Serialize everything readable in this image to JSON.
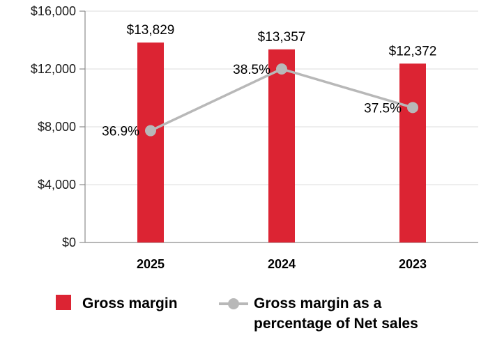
{
  "chart_data": {
    "type": "bar",
    "categories": [
      "2025",
      "2024",
      "2023"
    ],
    "series": [
      {
        "name": "Gross margin",
        "kind": "bar",
        "axis": "left",
        "values": [
          13829,
          13357,
          12372
        ],
        "labels": [
          "$13,829",
          "$13,357",
          "$12,372"
        ],
        "color": "#dc2433"
      },
      {
        "name": "Gross margin as a percentage of Net sales",
        "kind": "line",
        "axis": "right",
        "values": [
          36.9,
          38.5,
          37.5
        ],
        "labels": [
          "36.9%",
          "38.5%",
          "37.5%"
        ],
        "color": "#b8b8b8"
      }
    ],
    "ylim": [
      0,
      16000
    ],
    "yticks": [
      {
        "value": 0,
        "label": "$0"
      },
      {
        "value": 4000,
        "label": "$4,000"
      },
      {
        "value": 8000,
        "label": "$8,000"
      },
      {
        "value": 12000,
        "label": "$12,000"
      },
      {
        "value": 16000,
        "label": "$16,000"
      }
    ],
    "y2lim": [
      34,
      40
    ],
    "grid": true,
    "legend_position": "bottom"
  },
  "legend": {
    "bar_label": "Gross margin",
    "line_label_line1": "Gross margin as a",
    "line_label_line2": "percentage of Net sales"
  },
  "colors": {
    "grid": "#e3e3e3",
    "axis": "#8c8c8c"
  }
}
